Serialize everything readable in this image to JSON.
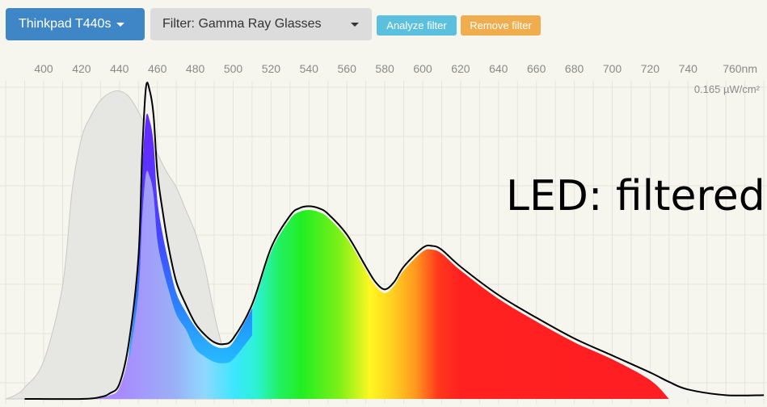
{
  "toolbar": {
    "device_label": "Thinkpad T440s",
    "filter_label": "Filter: Gamma Ray Glasses",
    "analyze_label": "Analyze filter",
    "remove_label": "Remove filter"
  },
  "colors": {
    "device_button": "#3f86c6",
    "filter_button": "#dcdcdc",
    "analyze_button": "#5bc0de",
    "remove_button": "#f0ad4e",
    "background": "#f6f6ee"
  },
  "chart_data": {
    "type": "area",
    "title": "",
    "overlay_text": "LED: filtered",
    "xlabel": "",
    "ylabel": "",
    "x_tick_labels": [
      "400",
      "420",
      "440",
      "460",
      "480",
      "500",
      "520",
      "540",
      "560",
      "580",
      "600",
      "620",
      "640",
      "660",
      "680",
      "700",
      "720",
      "740",
      "760nm"
    ],
    "xlim": [
      380,
      780
    ],
    "ylim": [
      0,
      0.165
    ],
    "y_max_label": "0.165 µW/cm²",
    "grid": true,
    "series": [
      {
        "role": "gray",
        "x": [
          380,
          385,
          390,
          400,
          410,
          415,
          420,
          425,
          430,
          435,
          440,
          445,
          450,
          455,
          460,
          465,
          470,
          475,
          480,
          485,
          490,
          495,
          500,
          505,
          510,
          520
        ],
        "y": [
          0,
          0.002,
          0.006,
          0.02,
          0.06,
          0.11,
          0.138,
          0.15,
          0.158,
          0.162,
          0.163,
          0.16,
          0.152,
          0.142,
          0.13,
          0.12,
          0.112,
          0.1,
          0.088,
          0.07,
          0.045,
          0.025,
          0.01,
          0.004,
          0.001,
          0
        ]
      },
      {
        "role": "outline",
        "x": [
          390,
          420,
          430,
          435,
          440,
          445,
          450,
          452,
          454,
          456,
          458,
          460,
          463,
          466,
          470,
          475,
          480,
          485,
          490,
          495,
          500,
          510,
          520,
          530,
          535,
          540,
          545,
          550,
          560,
          570,
          575,
          580,
          585,
          590,
          600,
          605,
          610,
          620,
          640,
          660,
          680,
          700,
          720,
          730,
          740,
          760,
          780
        ],
        "y": [
          0,
          0,
          0.001,
          0.003,
          0.008,
          0.03,
          0.075,
          0.13,
          0.165,
          0.163,
          0.15,
          0.12,
          0.098,
          0.08,
          0.062,
          0.05,
          0.04,
          0.034,
          0.03,
          0.029,
          0.032,
          0.05,
          0.08,
          0.097,
          0.101,
          0.102,
          0.101,
          0.098,
          0.087,
          0.07,
          0.062,
          0.058,
          0.062,
          0.07,
          0.08,
          0.081,
          0.079,
          0.07,
          0.055,
          0.043,
          0.032,
          0.023,
          0.014,
          0.009,
          0.005,
          0.002,
          0.002
        ]
      },
      {
        "role": "filtered",
        "x": [
          420,
          430,
          435,
          440,
          445,
          450,
          452,
          454,
          456,
          458,
          460,
          463,
          466,
          470,
          475,
          480,
          485,
          490,
          495,
          500,
          510,
          520,
          530,
          535,
          540,
          545,
          550,
          560,
          570,
          575,
          580,
          585,
          590,
          600,
          605,
          610,
          620,
          640,
          660,
          680,
          700,
          720,
          730
        ],
        "y": [
          0,
          0.001,
          0.002,
          0.006,
          0.025,
          0.07,
          0.12,
          0.149,
          0.147,
          0.135,
          0.105,
          0.086,
          0.072,
          0.056,
          0.046,
          0.038,
          0.032,
          0.028,
          0.027,
          0.03,
          0.048,
          0.078,
          0.095,
          0.099,
          0.1,
          0.099,
          0.096,
          0.085,
          0.068,
          0.06,
          0.056,
          0.06,
          0.068,
          0.078,
          0.079,
          0.077,
          0.068,
          0.053,
          0.041,
          0.03,
          0.021,
          0.01,
          0.0
        ]
      }
    ]
  }
}
